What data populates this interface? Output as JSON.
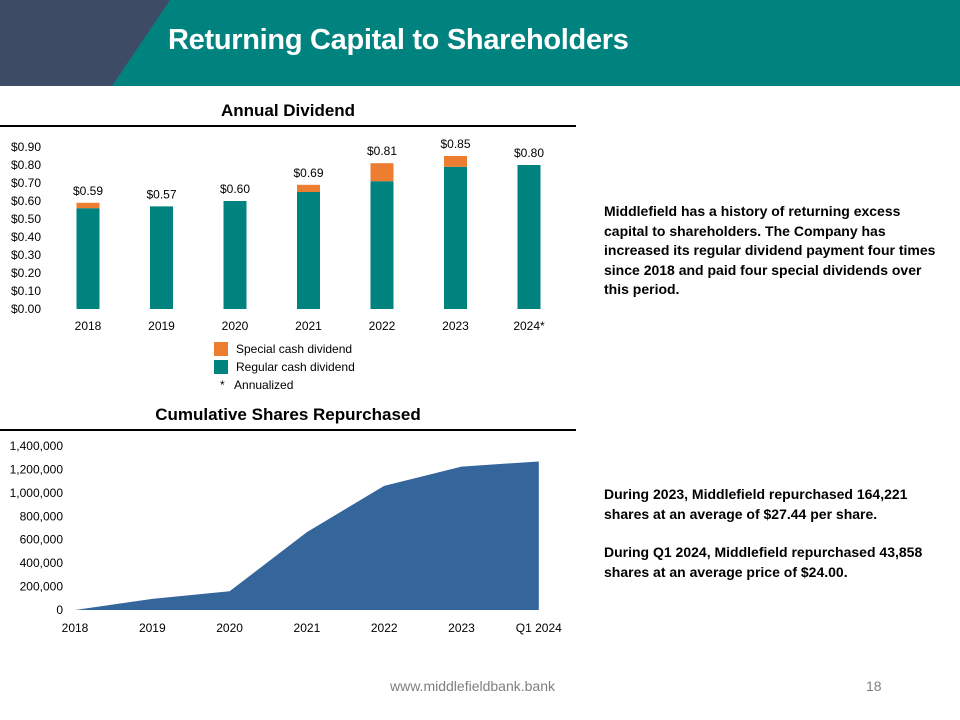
{
  "page": {
    "title": "Returning Capital to Shareholders",
    "footer_url": "www.middlefieldbank.bank",
    "page_number": "18"
  },
  "colors": {
    "teal": "#00827F",
    "dark_slate": "#3D4C64",
    "orange": "#ED7D31",
    "area_blue": "#34659B"
  },
  "chart_data": [
    {
      "type": "bar",
      "stacked": true,
      "title": "Annual Dividend",
      "categories": [
        "2018",
        "2019",
        "2020",
        "2021",
        "2022",
        "2023",
        "2024*"
      ],
      "series": [
        {
          "name": "Regular cash dividend",
          "values": [
            0.56,
            0.57,
            0.6,
            0.65,
            0.71,
            0.79,
            0.8
          ]
        },
        {
          "name": "Special cash dividend",
          "values": [
            0.03,
            0.0,
            0.0,
            0.04,
            0.1,
            0.06,
            0.0
          ]
        }
      ],
      "data_labels": [
        "$0.59",
        "$0.57",
        "$0.60",
        "$0.69",
        "$0.81",
        "$0.85",
        "$0.80"
      ],
      "y_ticks": [
        "$0.00",
        "$0.10",
        "$0.20",
        "$0.30",
        "$0.40",
        "$0.50",
        "$0.60",
        "$0.70",
        "$0.80",
        "$0.90"
      ],
      "ylim": [
        0,
        0.9
      ],
      "legend": [
        "Special cash dividend",
        "Regular cash dividend"
      ],
      "footnote": "*   Annualized"
    },
    {
      "type": "area",
      "title": "Cumulative Shares Repurchased",
      "categories": [
        "2018",
        "2019",
        "2020",
        "2021",
        "2022",
        "2023",
        "Q1 2024"
      ],
      "values": [
        0,
        95000,
        160000,
        665000,
        1060000,
        1224221,
        1268079
      ],
      "y_ticks": [
        "0",
        "200,000",
        "400,000",
        "600,000",
        "800,000",
        "1,000,000",
        "1,200,000",
        "1,400,000"
      ],
      "ylim": [
        0,
        1400000
      ]
    }
  ],
  "notes": {
    "dividend_text": "Middlefield has a history of returning excess capital to shareholders.  The Company has increased its regular dividend payment four times since 2018 and paid four special dividends over this period.",
    "repurchase_2023": "During 2023, Middlefield repurchased 164,221 shares at an average of $27.44 per share.",
    "repurchase_q1_2024": "During Q1 2024, Middlefield repurchased 43,858 shares at an average price of $24.00."
  }
}
